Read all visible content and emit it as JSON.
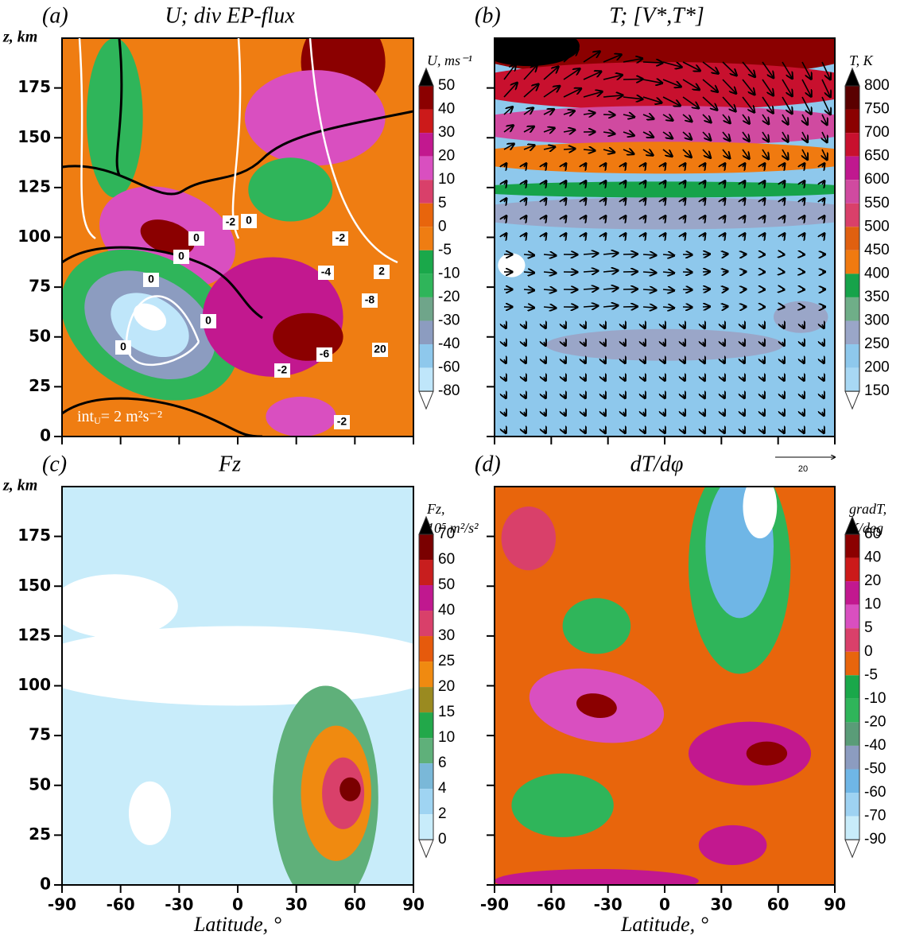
{
  "chart_data": [
    {
      "type": "contour",
      "panel_label": "(a)",
      "title": "U; div EP-flux",
      "y_label": "z, km",
      "ylim": [
        0,
        200
      ],
      "yticks": [
        0,
        25,
        50,
        75,
        100,
        125,
        150,
        175
      ],
      "xlim": [
        -90,
        90
      ],
      "xticks": [
        -90,
        -60,
        -30,
        0,
        30,
        60,
        90
      ],
      "show_xtick_labels": false,
      "show_ytick_labels": true,
      "colorbar_label": [
        "U, ms⁻¹"
      ],
      "levels": [
        50,
        40,
        30,
        20,
        10,
        5,
        0,
        -5,
        -10,
        -20,
        -30,
        -40,
        -60,
        -80
      ],
      "colors": [
        "#000000",
        "#8b0000",
        "#cc1a1a",
        "#c2188f",
        "#d94fc0",
        "#d9406a",
        "#e8650c",
        "#ef7d12",
        "#1aa84a",
        "#2fb55a",
        "#6fa58a",
        "#8c9cc0",
        "#8ec8ec",
        "#bfe6fa",
        "#ffffff"
      ],
      "contour_labels": [
        0,
        0,
        0,
        0,
        0,
        -2,
        0,
        -2,
        2,
        -4,
        -8,
        -2,
        -6,
        20,
        -2
      ],
      "interval_note": {
        "text": "int",
        "sub": "U",
        "rest": "= 2 m²s⁻²"
      }
    },
    {
      "type": "vector",
      "panel_label": "(b)",
      "title": "T; [V*,T*]",
      "ylim": [
        0,
        200
      ],
      "yticks": [
        0,
        25,
        50,
        75,
        100,
        125,
        150,
        175
      ],
      "xlim": [
        -90,
        90
      ],
      "xticks": [
        -90,
        -60,
        -30,
        0,
        30,
        60,
        90
      ],
      "show_xtick_labels": false,
      "show_ytick_labels": false,
      "colorbar_label": [
        "T, K"
      ],
      "levels": [
        800,
        750,
        700,
        650,
        600,
        550,
        500,
        450,
        400,
        350,
        300,
        250,
        200,
        150
      ],
      "colors": [
        "#000000",
        "#5a0000",
        "#8b0000",
        "#c8102e",
        "#c0188f",
        "#d04aa0",
        "#d9406a",
        "#e06010",
        "#f07a10",
        "#16a34a",
        "#6fae88",
        "#9aa6c8",
        "#8ec8ec",
        "#a8d8f4",
        "#ffffff"
      ],
      "vector_reference": 20
    },
    {
      "type": "contour",
      "panel_label": "(c)",
      "title": "Fz",
      "y_label": "z, km",
      "x_label": "Latitude, °",
      "ylim": [
        0,
        200
      ],
      "yticks": [
        0,
        25,
        50,
        75,
        100,
        125,
        150,
        175
      ],
      "xlim": [
        -90,
        90
      ],
      "xticks": [
        -90,
        -60,
        -30,
        0,
        30,
        60,
        90
      ],
      "show_xtick_labels": true,
      "show_ytick_labels": true,
      "colorbar_label": [
        "Fz,",
        "10⁵ m²/s²"
      ],
      "levels": [
        70,
        60,
        50,
        40,
        30,
        25,
        20,
        15,
        10,
        6,
        4,
        2,
        0
      ],
      "colors": [
        "#000000",
        "#7a0000",
        "#c81e1e",
        "#c0188f",
        "#d9406a",
        "#e65a0c",
        "#f08a10",
        "#9a8a20",
        "#22a84a",
        "#5fb07a",
        "#7ab8d8",
        "#9fd4f2",
        "#c8ecfa",
        "#ffffff"
      ]
    },
    {
      "type": "contour",
      "panel_label": "(d)",
      "title": "dT/dφ",
      "x_label": "Latitude, °",
      "ylim": [
        0,
        200
      ],
      "yticks": [
        0,
        25,
        50,
        75,
        100,
        125,
        150,
        175
      ],
      "xlim": [
        -90,
        90
      ],
      "xticks": [
        -90,
        -60,
        -30,
        0,
        30,
        60,
        90
      ],
      "show_xtick_labels": true,
      "show_ytick_labels": false,
      "colorbar_label": [
        "gradT,",
        "K/deg"
      ],
      "levels": [
        60,
        40,
        20,
        10,
        5,
        0,
        -5,
        -10,
        -20,
        -40,
        -50,
        -60,
        -70,
        -90
      ],
      "colors": [
        "#000000",
        "#8b0000",
        "#cc1a1a",
        "#c2188f",
        "#d94fc0",
        "#d9406a",
        "#e8650c",
        "#1aa84a",
        "#2fb55a",
        "#5a9c78",
        "#8c9cc0",
        "#6fb6e6",
        "#9ed2f2",
        "#c8ecfa",
        "#ffffff"
      ]
    }
  ]
}
